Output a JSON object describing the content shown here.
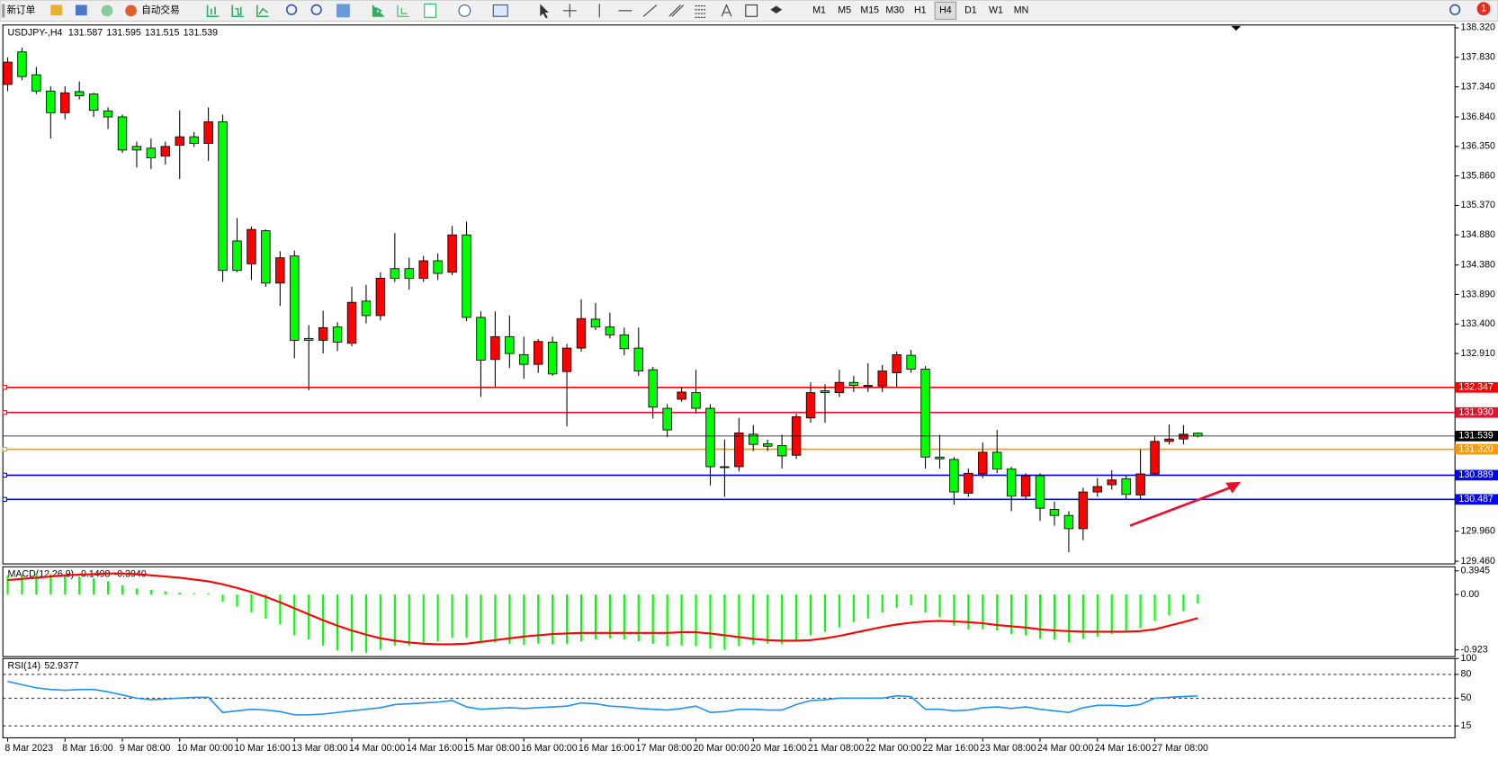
{
  "toolbar": {
    "new_order": "新订单",
    "auto_trading": "自动交易",
    "periods": [
      "M1",
      "M5",
      "M15",
      "M30",
      "H1",
      "H4",
      "D1",
      "W1",
      "MN"
    ],
    "active_period": "H4",
    "notifications": 1
  },
  "chart_data": [
    {
      "type": "candlestick",
      "title": "USDJPY-,H4",
      "categories": [
        "8 Mar 2023",
        null,
        null,
        null,
        "8 Mar 16:00",
        null,
        null,
        null,
        "9 Mar 08:00",
        null,
        null,
        null,
        "10 Mar 00:00",
        null,
        null,
        null,
        "10 Mar 16:00",
        null,
        null,
        null,
        "13 Mar 08:00",
        null,
        null,
        null,
        "14 Mar 00:00",
        null,
        null,
        null,
        "14 Mar 16:00",
        null,
        null,
        null,
        "15 Mar 08:00",
        null,
        null,
        null,
        "16 Mar 00:00",
        null,
        null,
        null,
        "16 Mar 16:00",
        null,
        null,
        null,
        "17 Mar 08:00",
        null,
        null,
        null,
        "20 Mar 00:00",
        null,
        null,
        null,
        "20 Mar 16:00",
        null,
        null,
        null,
        "21 Mar 08:00",
        null,
        null,
        null,
        "22 Mar 00:00",
        null,
        null,
        null,
        "22 Mar 16:00",
        null,
        null,
        null,
        "23 Mar 08:00",
        null,
        null,
        null,
        "24 Mar 00:00",
        null,
        null,
        null,
        "24 Mar 16:00",
        null,
        null,
        null,
        "27 Mar 08:00",
        null,
        null,
        null
      ],
      "ohlc": [
        [
          137.38,
          137.83,
          137.27,
          137.75
        ],
        [
          137.92,
          137.99,
          137.45,
          137.51
        ],
        [
          137.54,
          137.67,
          137.22,
          137.27
        ],
        [
          137.27,
          137.35,
          136.48,
          136.91
        ],
        [
          136.91,
          137.35,
          136.8,
          137.24
        ],
        [
          137.26,
          137.43,
          137.13,
          137.19
        ],
        [
          137.22,
          137.24,
          136.84,
          136.95
        ],
        [
          136.94,
          137.0,
          136.64,
          136.84
        ],
        [
          136.84,
          136.88,
          136.24,
          136.29
        ],
        [
          136.35,
          136.43,
          136.0,
          136.29
        ],
        [
          136.32,
          136.48,
          135.97,
          136.16
        ],
        [
          136.19,
          136.43,
          136.05,
          136.35
        ],
        [
          136.37,
          136.95,
          135.81,
          136.51
        ],
        [
          136.51,
          136.59,
          136.34,
          136.4
        ],
        [
          136.4,
          137.0,
          136.11,
          136.76
        ],
        [
          136.76,
          136.88,
          134.1,
          134.29
        ],
        [
          134.78,
          135.16,
          134.26,
          134.29
        ],
        [
          134.4,
          135.02,
          134.13,
          134.97
        ],
        [
          134.95,
          134.97,
          134.02,
          134.08
        ],
        [
          134.08,
          134.61,
          133.7,
          134.5
        ],
        [
          134.53,
          134.62,
          132.83,
          133.13
        ],
        [
          133.16,
          133.38,
          132.3,
          133.13
        ],
        [
          133.13,
          133.62,
          132.91,
          133.34
        ],
        [
          133.35,
          133.43,
          132.95,
          133.1
        ],
        [
          133.08,
          134.02,
          133.03,
          133.76
        ],
        [
          133.78,
          134.05,
          133.41,
          133.54
        ],
        [
          133.54,
          134.26,
          133.46,
          134.16
        ],
        [
          134.32,
          134.91,
          134.1,
          134.16
        ],
        [
          134.32,
          134.5,
          133.97,
          134.16
        ],
        [
          134.16,
          134.53,
          134.1,
          134.45
        ],
        [
          134.45,
          134.57,
          134.13,
          134.24
        ],
        [
          134.26,
          135.03,
          134.21,
          134.88
        ],
        [
          134.88,
          135.1,
          133.45,
          133.51
        ],
        [
          133.51,
          133.61,
          132.19,
          132.8
        ],
        [
          132.81,
          133.61,
          132.35,
          133.19
        ],
        [
          133.19,
          133.54,
          132.67,
          132.91
        ],
        [
          132.89,
          133.19,
          132.49,
          132.73
        ],
        [
          132.73,
          133.15,
          132.59,
          133.11
        ],
        [
          133.1,
          133.19,
          132.54,
          132.57
        ],
        [
          132.61,
          133.07,
          131.7,
          133.0
        ],
        [
          133.0,
          133.81,
          132.94,
          133.49
        ],
        [
          133.48,
          133.75,
          133.3,
          133.35
        ],
        [
          133.35,
          133.59,
          133.16,
          133.22
        ],
        [
          133.22,
          133.34,
          132.88,
          132.99
        ],
        [
          133.0,
          133.34,
          132.54,
          132.62
        ],
        [
          132.64,
          132.69,
          131.83,
          132.02
        ],
        [
          132.0,
          132.07,
          131.52,
          131.64
        ],
        [
          132.15,
          132.35,
          132.11,
          132.27
        ],
        [
          132.26,
          132.64,
          131.91,
          132.0
        ],
        [
          132.0,
          132.07,
          130.72,
          131.03
        ],
        [
          131.03,
          131.48,
          130.53,
          131.02
        ],
        [
          131.03,
          131.84,
          130.95,
          131.59
        ],
        [
          131.57,
          131.72,
          131.29,
          131.4
        ],
        [
          131.41,
          131.48,
          131.29,
          131.37
        ],
        [
          131.38,
          131.56,
          131.0,
          131.21
        ],
        [
          131.22,
          131.91,
          131.16,
          131.86
        ],
        [
          131.84,
          132.43,
          131.76,
          132.26
        ],
        [
          132.29,
          132.4,
          131.76,
          132.26
        ],
        [
          132.26,
          132.64,
          132.19,
          132.43
        ],
        [
          132.43,
          132.54,
          132.27,
          132.38
        ],
        [
          132.38,
          132.75,
          132.27,
          132.37
        ],
        [
          132.37,
          132.72,
          132.27,
          132.62
        ],
        [
          132.59,
          132.94,
          132.35,
          132.89
        ],
        [
          132.88,
          132.97,
          132.59,
          132.65
        ],
        [
          132.65,
          132.7,
          131.0,
          131.19
        ],
        [
          131.19,
          131.56,
          131.0,
          131.16
        ],
        [
          131.15,
          131.19,
          130.4,
          130.61
        ],
        [
          130.59,
          131.0,
          130.53,
          130.92
        ],
        [
          130.91,
          131.43,
          130.84,
          131.27
        ],
        [
          131.27,
          131.64,
          130.92,
          130.99
        ],
        [
          130.99,
          131.03,
          130.29,
          130.54
        ],
        [
          130.54,
          130.92,
          130.49,
          130.88
        ],
        [
          130.88,
          130.92,
          130.13,
          130.34
        ],
        [
          130.32,
          130.45,
          130.05,
          130.22
        ],
        [
          130.22,
          130.29,
          129.61,
          130.0
        ],
        [
          130.0,
          130.68,
          129.81,
          130.61
        ],
        [
          130.61,
          130.84,
          130.53,
          130.7
        ],
        [
          130.73,
          130.97,
          130.65,
          130.81
        ],
        [
          130.83,
          130.88,
          130.49,
          130.57
        ],
        [
          130.56,
          131.32,
          130.48,
          130.91
        ],
        [
          130.91,
          131.53,
          130.89,
          131.45
        ],
        [
          131.45,
          131.73,
          131.4,
          131.49
        ],
        [
          131.49,
          131.72,
          131.4,
          131.57
        ],
        [
          131.587,
          131.595,
          131.515,
          131.539
        ]
      ],
      "up_color": "#ff0000",
      "down_color": "#00ff00",
      "ylim": [
        129.415,
        138.367
      ],
      "yticks": [
        {
          "value": 138.32,
          "label": "138.320"
        },
        {
          "value": 137.83,
          "label": "137.830"
        },
        {
          "value": 137.34,
          "label": "137.340"
        },
        {
          "value": 136.84,
          "label": "136.840"
        },
        {
          "value": 136.35,
          "label": "136.350"
        },
        {
          "value": 135.86,
          "label": "135.860"
        },
        {
          "value": 135.37,
          "label": "135.370"
        },
        {
          "value": 134.88,
          "label": "134.880"
        },
        {
          "value": 134.38,
          "label": "134.380"
        },
        {
          "value": 133.89,
          "label": "133.890"
        },
        {
          "value": 133.4,
          "label": "133.400"
        },
        {
          "value": 132.91,
          "label": "132.910"
        },
        {
          "value": 129.96,
          "label": "129.960"
        },
        {
          "value": 129.46,
          "label": "129.460"
        }
      ],
      "hlines": [
        {
          "value": 132.347,
          "color": "#ff0000"
        },
        {
          "value": 131.93,
          "label": "131.930",
          "color": "#e8102a"
        },
        {
          "value": 131.32,
          "label": "131.320",
          "color": "#ff9900"
        },
        {
          "value": 130.889,
          "color": "#0000ff"
        },
        {
          "value": 130.487,
          "color": "#0000ff"
        }
      ],
      "last_price_color": "#000000"
    },
    {
      "type": "macd",
      "title": "MACD(12,26,9)",
      "values": [
        0.32,
        0.33,
        0.34,
        0.34,
        0.32,
        0.3,
        0.27,
        0.22,
        0.15,
        0.1,
        0.08,
        0.05,
        0.03,
        0.02,
        0.02,
        -0.12,
        -0.2,
        -0.3,
        -0.4,
        -0.5,
        -0.68,
        -0.75,
        -0.85,
        -0.93,
        -0.95,
        -0.97,
        -0.92,
        -0.85,
        -0.85,
        -0.82,
        -0.78,
        -0.72,
        -0.72,
        -0.8,
        -0.8,
        -0.82,
        -0.84,
        -0.82,
        -0.83,
        -0.82,
        -0.78,
        -0.75,
        -0.73,
        -0.75,
        -0.78,
        -0.82,
        -0.86,
        -0.85,
        -0.86,
        -0.9,
        -0.92,
        -0.86,
        -0.84,
        -0.82,
        -0.83,
        -0.76,
        -0.68,
        -0.62,
        -0.55,
        -0.46,
        -0.4,
        -0.3,
        -0.22,
        -0.18,
        -0.3,
        -0.38,
        -0.52,
        -0.58,
        -0.58,
        -0.6,
        -0.66,
        -0.68,
        -0.74,
        -0.75,
        -0.8,
        -0.74,
        -0.7,
        -0.66,
        -0.62,
        -0.56,
        -0.44,
        -0.35,
        -0.28,
        -0.1498
      ],
      "color": "#00ff00",
      "signal_values": [
        0.24,
        0.26,
        0.28,
        0.3,
        0.32,
        0.33,
        0.34,
        0.35,
        0.35,
        0.34,
        0.32,
        0.3,
        0.28,
        0.25,
        0.22,
        0.17,
        0.11,
        0.04,
        -0.04,
        -0.13,
        -0.23,
        -0.33,
        -0.43,
        -0.52,
        -0.6,
        -0.67,
        -0.73,
        -0.77,
        -0.8,
        -0.82,
        -0.83,
        -0.83,
        -0.82,
        -0.79,
        -0.76,
        -0.73,
        -0.7,
        -0.68,
        -0.66,
        -0.65,
        -0.64,
        -0.64,
        -0.64,
        -0.64,
        -0.64,
        -0.64,
        -0.64,
        -0.63,
        -0.63,
        -0.65,
        -0.68,
        -0.71,
        -0.74,
        -0.76,
        -0.77,
        -0.77,
        -0.76,
        -0.73,
        -0.69,
        -0.64,
        -0.59,
        -0.54,
        -0.5,
        -0.47,
        -0.45,
        -0.44,
        -0.45,
        -0.46,
        -0.48,
        -0.51,
        -0.53,
        -0.55,
        -0.58,
        -0.6,
        -0.61,
        -0.62,
        -0.62,
        -0.62,
        -0.62,
        -0.61,
        -0.58,
        -0.52,
        -0.46,
        -0.394
      ],
      "signal_value_labels": [
        null,
        null,
        null,
        null,
        null,
        null,
        null,
        null,
        null,
        null,
        null,
        null,
        null,
        null,
        null,
        null,
        null,
        null,
        null,
        null,
        null,
        null,
        null,
        null,
        null,
        null,
        null,
        null,
        null,
        null,
        null,
        null,
        null,
        null,
        null,
        null,
        null,
        null,
        null,
        null,
        null,
        null,
        null,
        null,
        null,
        null,
        null,
        null,
        null,
        null,
        null,
        null,
        null,
        null,
        null,
        null,
        null,
        null,
        null,
        null,
        null,
        null,
        null,
        null,
        null,
        null,
        null,
        null,
        null,
        null,
        null,
        null,
        null,
        null,
        null,
        null,
        null,
        null,
        null,
        null,
        null,
        null,
        null,
        "-0.3940"
      ],
      "signal_color": "#ff0000",
      "ylim": [
        -1.035,
        0.462
      ],
      "yticks": [
        0.3945,
        {
          "value": 0,
          "label": "0.00"
        },
        -0.923
      ]
    },
    {
      "type": "line",
      "title": "RSI(14)",
      "values": [
        71,
        67,
        63,
        61,
        60,
        61,
        61,
        58,
        54,
        50,
        48,
        49,
        50,
        51,
        51,
        32,
        34,
        36,
        35,
        33,
        29,
        29,
        30,
        32,
        34,
        36,
        38,
        42,
        43,
        44,
        45,
        47,
        39,
        36,
        37,
        38,
        37,
        38,
        39,
        40,
        44,
        43,
        40,
        39,
        37,
        36,
        35,
        37,
        40,
        32,
        33,
        36,
        36,
        35,
        35,
        42,
        47,
        48,
        50,
        50,
        50,
        50,
        53,
        52,
        36,
        36,
        34,
        35,
        38,
        39,
        37,
        39,
        36,
        34,
        32,
        38,
        41,
        41,
        40,
        42,
        50,
        51,
        52,
        52.9377
      ],
      "color": "#1e90ff",
      "ylim": [
        0,
        100
      ],
      "yticks": [
        100,
        80,
        50,
        15
      ],
      "grid": true
    }
  ]
}
